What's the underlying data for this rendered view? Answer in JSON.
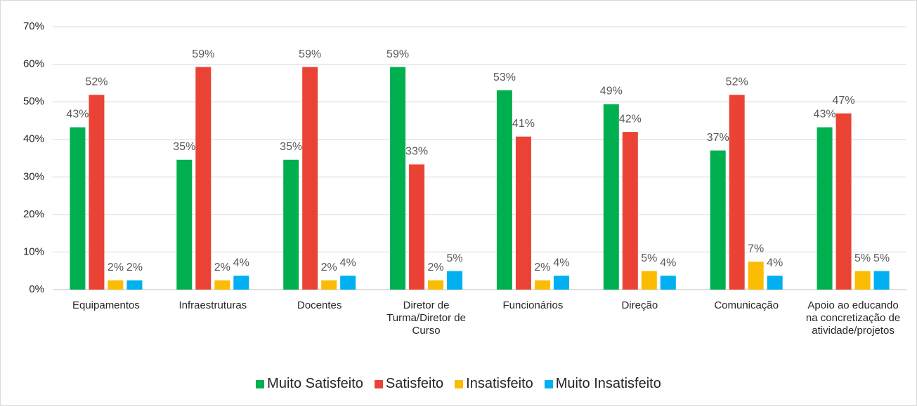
{
  "chart_data": {
    "type": "bar",
    "categories": [
      "Equipamentos",
      "Infraestruturas",
      "Docentes",
      "Diretor de Turma/Diretor de Curso",
      "Funcionários",
      "Direção",
      "Comunicação",
      "Apoio ao educando na concretização de atividade/projetos"
    ],
    "series": [
      {
        "name": "Muito Satisfeito",
        "color": "#00b050",
        "values": [
          43.21,
          34.57,
          34.57,
          59.26,
          53.09,
          49.38,
          37.04,
          43.21
        ],
        "value_labels": [
          "43%",
          "35%",
          "35%",
          "59%",
          "53%",
          "49%",
          "37%",
          "43%"
        ]
      },
      {
        "name": "Satisfeito",
        "color": "#ea4335",
        "values": [
          51.85,
          59.26,
          59.26,
          33.33,
          40.74,
          41.98,
          51.85,
          46.91
        ],
        "value_labels": [
          "52%",
          "59%",
          "59%",
          "33%",
          "41%",
          "42%",
          "52%",
          "47%"
        ]
      },
      {
        "name": "Insatisfeito",
        "color": "#fbbc04",
        "values": [
          2.47,
          2.47,
          2.47,
          2.47,
          2.47,
          4.94,
          7.41,
          4.94
        ],
        "value_labels": [
          "2%",
          "2%",
          "2%",
          "2%",
          "2%",
          "5%",
          "7%",
          "5%"
        ]
      },
      {
        "name": "Muito Insatisfeito",
        "color": "#00b0f0",
        "values": [
          2.47,
          3.7,
          3.7,
          4.94,
          3.7,
          3.7,
          3.7,
          4.94
        ],
        "value_labels": [
          "2%",
          "4%",
          "4%",
          "5%",
          "4%",
          "4%",
          "4%",
          "5%"
        ]
      }
    ],
    "ylim": [
      0,
      70
    ],
    "yticks": [
      {
        "value": 0,
        "label": "0%"
      },
      {
        "value": 10,
        "label": "10%"
      },
      {
        "value": 20,
        "label": "20%"
      },
      {
        "value": 30,
        "label": "30%"
      },
      {
        "value": 40,
        "label": "40%"
      },
      {
        "value": 50,
        "label": "50%"
      },
      {
        "value": 60,
        "label": "60%"
      },
      {
        "value": 70,
        "label": "70%"
      }
    ],
    "grid": true,
    "legend": "bottom"
  }
}
